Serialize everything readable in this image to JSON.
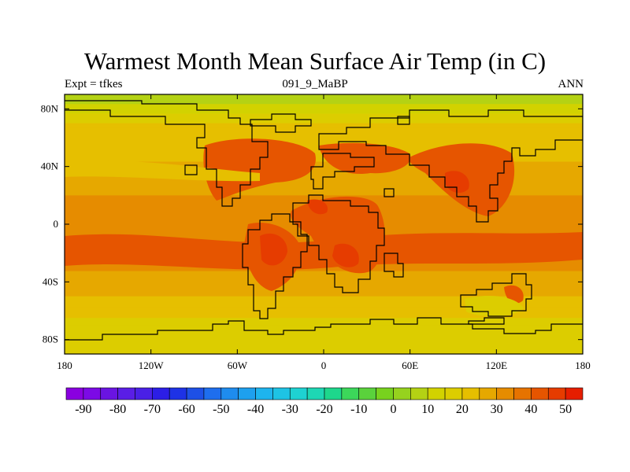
{
  "title": "Warmest Month Mean Surface Air Temp (in C)",
  "left_label": "Expt = tfkes",
  "center_label": "091_9_MaBP",
  "right_label": "ANN",
  "chart_data": {
    "type": "heatmap",
    "title": "Warmest Month Mean Surface Air Temp (in C)",
    "units": "C",
    "x_ticks": [
      "180",
      "120W",
      "60W",
      "0",
      "60E",
      "120E",
      "180"
    ],
    "y_ticks": [
      "80N",
      "40N",
      "0",
      "40S",
      "80S"
    ],
    "xlim": [
      -180,
      180
    ],
    "ylim": [
      -90,
      90
    ],
    "zonal_profile": [
      {
        "lat": 90,
        "temp": 5
      },
      {
        "lat": 80,
        "temp": 12
      },
      {
        "lat": 70,
        "temp": 20
      },
      {
        "lat": 50,
        "temp": 23
      },
      {
        "lat": 30,
        "temp": 28
      },
      {
        "lat": 10,
        "temp": 32
      },
      {
        "lat": -10,
        "temp": 34
      },
      {
        "lat": -25,
        "temp": 32
      },
      {
        "lat": -40,
        "temp": 28
      },
      {
        "lat": -55,
        "temp": 23
      },
      {
        "lat": -70,
        "temp": 18
      },
      {
        "lat": -90,
        "temp": 17
      }
    ],
    "colorbar": {
      "levels": [
        -95,
        -90,
        -85,
        -80,
        -75,
        -70,
        -65,
        -60,
        -55,
        -50,
        -45,
        -40,
        -35,
        -30,
        -25,
        -20,
        -15,
        -10,
        -5,
        0,
        5,
        10,
        15,
        20,
        25,
        30,
        35,
        40,
        45,
        50,
        55
      ],
      "labels": [
        "-90",
        "-80",
        "-70",
        "-60",
        "-50",
        "-40",
        "-30",
        "-20",
        "-10",
        "0",
        "10",
        "20",
        "30",
        "40",
        "50"
      ],
      "colors": [
        "#8a00e0",
        "#7c0ae6",
        "#6a14e2",
        "#5a1ee6",
        "#4a20e6",
        "#2c1ee6",
        "#1e32e6",
        "#1e50e6",
        "#1e6eee",
        "#1e8cee",
        "#1ea0ee",
        "#1eb4ee",
        "#1ec3e4",
        "#1ed2d2",
        "#1ed7b4",
        "#1ed78c",
        "#3cd75a",
        "#5ad23c",
        "#78d21e",
        "#96d21e",
        "#b4d214",
        "#d2d200",
        "#dccd00",
        "#e6bf00",
        "#e6a800",
        "#e68c00",
        "#e67300",
        "#e65500",
        "#e63c00",
        "#e61e00"
      ]
    }
  }
}
